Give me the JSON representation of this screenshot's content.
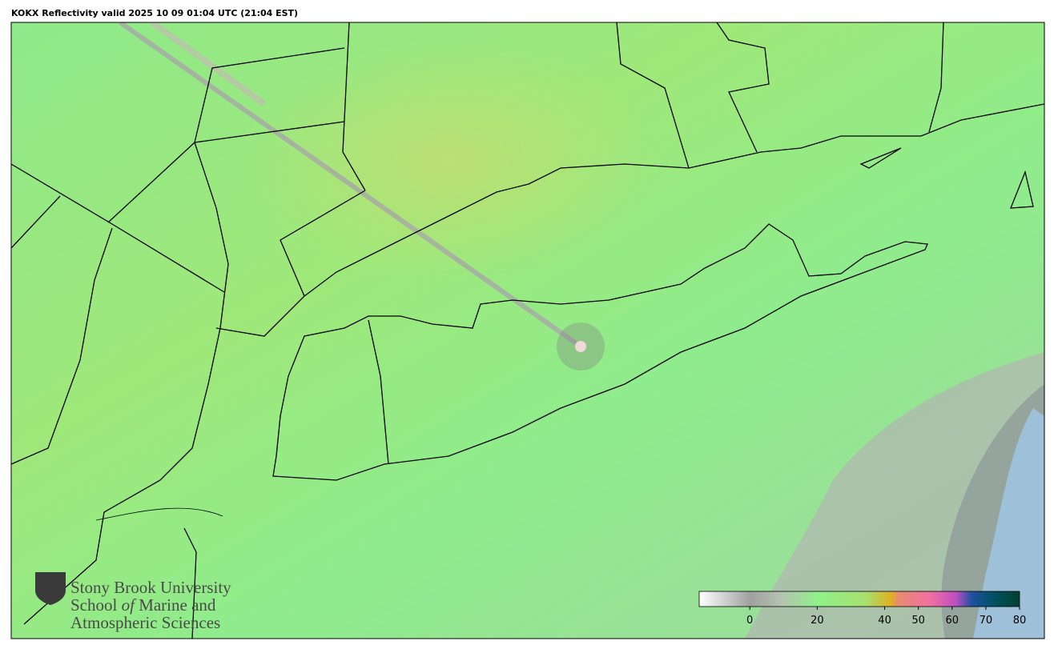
{
  "title": "KOKX Reflectivity valid 2025 10 09 01:04 UTC (21:04 EST)",
  "logo": {
    "line1": "Stony Brook University",
    "line2_start": "School",
    "line2_italic": "of",
    "line2_end": "Marine and",
    "line3": "Atmospheric Sciences"
  },
  "colorbar": {
    "lim": [
      -15,
      80
    ],
    "ticks": [
      0,
      20,
      40,
      50,
      60,
      70,
      80
    ]
  }
}
